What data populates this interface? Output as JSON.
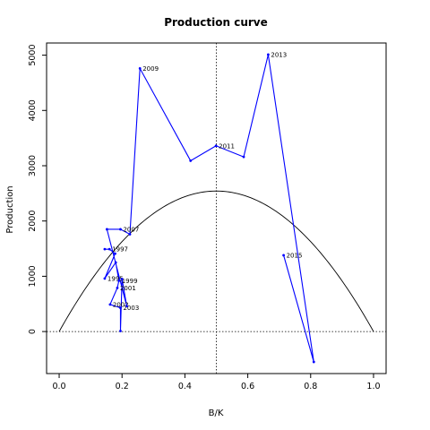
{
  "chart_data": {
    "type": "line",
    "title": "Production curve",
    "xlabel": "B/K",
    "ylabel": "Production",
    "xlim": [
      -0.04,
      1.04
    ],
    "ylim": [
      -760,
      5220
    ],
    "x_ticks": [
      "0.0",
      "0.2",
      "0.4",
      "0.6",
      "0.8",
      "1.0"
    ],
    "x_tick_values": [
      0.0,
      0.2,
      0.4,
      0.6,
      0.8,
      1.0
    ],
    "y_ticks": [
      "0",
      "1000",
      "2000",
      "3000",
      "4000",
      "5000"
    ],
    "y_tick_values": [
      0,
      1000,
      2000,
      3000,
      4000,
      5000
    ],
    "grid": false,
    "reference_lines": {
      "vertical_dotted_x": 0.5,
      "horizontal_dotted_y": 0
    },
    "curve": {
      "type": "parabola",
      "x": [
        0.0,
        0.1,
        0.2,
        0.3,
        0.4,
        0.5,
        0.6,
        0.7,
        0.8,
        0.9,
        1.0
      ],
      "y": [
        0,
        915,
        1627,
        2135,
        2440,
        2542,
        2440,
        2135,
        1627,
        915,
        0
      ],
      "color": "#000000"
    },
    "series": [
      {
        "color": "#0000ff",
        "points": [
          {
            "x": 0.145,
            "y": 1490,
            "label": ""
          },
          {
            "x": 0.16,
            "y": 1490,
            "label": "1997"
          },
          {
            "x": 0.178,
            "y": 1410,
            "label": ""
          },
          {
            "x": 0.145,
            "y": 960,
            "label": "1995"
          },
          {
            "x": 0.18,
            "y": 1250,
            "label": ""
          },
          {
            "x": 0.19,
            "y": 920,
            "label": "1999"
          },
          {
            "x": 0.185,
            "y": 790,
            "label": "2001"
          },
          {
            "x": 0.162,
            "y": 490,
            "label": "2002"
          },
          {
            "x": 0.195,
            "y": 430,
            "label": "2003"
          },
          {
            "x": 0.195,
            "y": 10,
            "label": ""
          },
          {
            "x": 0.2,
            "y": 950,
            "label": ""
          },
          {
            "x": 0.215,
            "y": 460,
            "label": ""
          },
          {
            "x": 0.152,
            "y": 1850,
            "label": ""
          },
          {
            "x": 0.195,
            "y": 1850,
            "label": "2007"
          },
          {
            "x": 0.225,
            "y": 1760,
            "label": ""
          },
          {
            "x": 0.257,
            "y": 4760,
            "label": "2009"
          },
          {
            "x": 0.418,
            "y": 3090,
            "label": ""
          },
          {
            "x": 0.499,
            "y": 3360,
            "label": "2011"
          },
          {
            "x": 0.587,
            "y": 3160,
            "label": ""
          },
          {
            "x": 0.665,
            "y": 5010,
            "label": "2013"
          },
          {
            "x": 0.81,
            "y": -550,
            "label": ""
          },
          {
            "x": 0.714,
            "y": 1380,
            "label": "2015"
          }
        ]
      }
    ]
  }
}
